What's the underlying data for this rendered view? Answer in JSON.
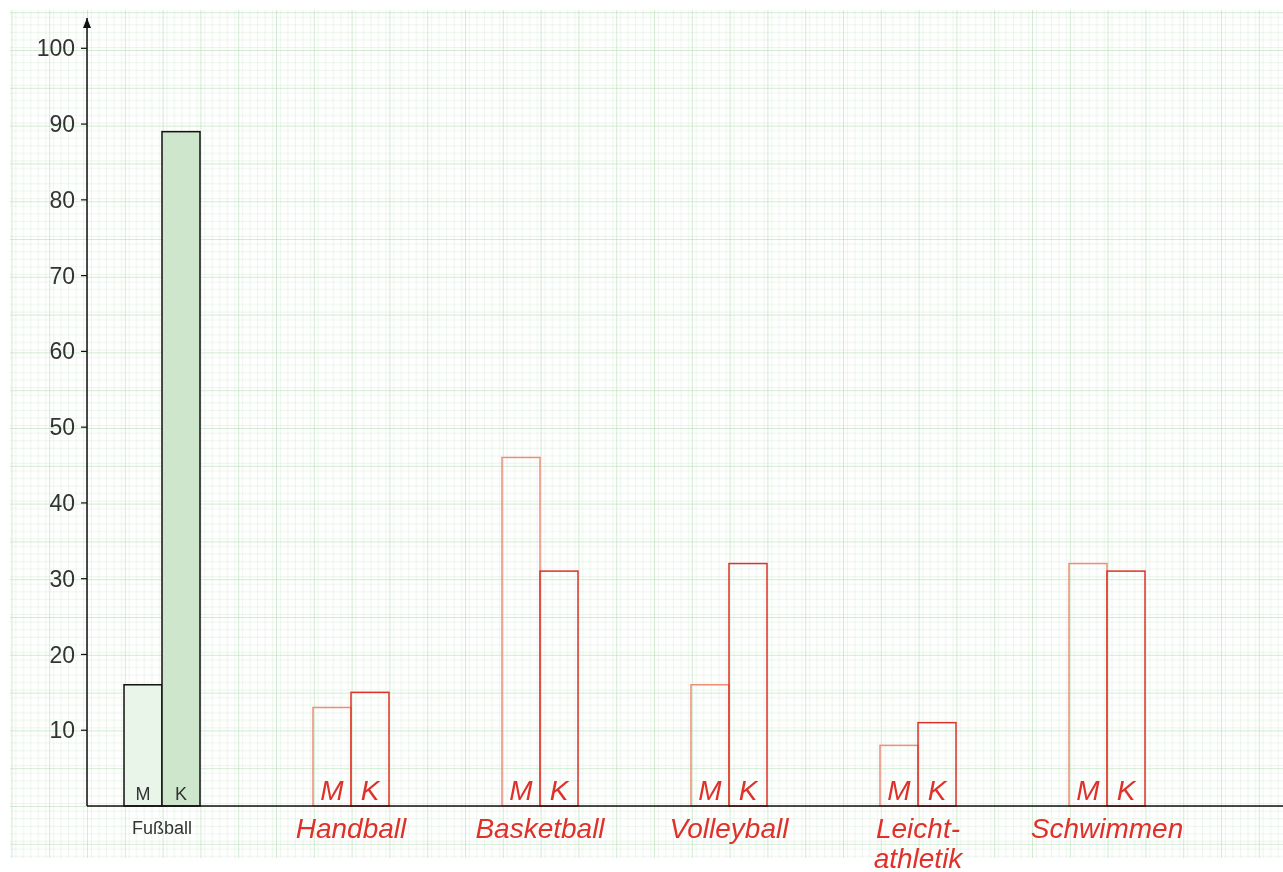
{
  "chart_data": {
    "type": "bar",
    "categories": [
      "Fußball",
      "Handball",
      "Basketball",
      "Volleyball",
      "Leicht-\nathletik",
      "Schwimmen"
    ],
    "series": [
      {
        "name": "M",
        "colors": [
          "#eaf5e9",
          "#f08c78",
          "#f08c78",
          "#f08c78",
          "#f08c78",
          "#f08c78"
        ],
        "values": [
          16,
          13,
          46,
          16,
          8,
          32
        ]
      },
      {
        "name": "K",
        "colors": [
          "#cde6cc",
          "#e0302a",
          "#e0302a",
          "#e0302a",
          "#e0302a",
          "#e0302a"
        ],
        "values": [
          89,
          15,
          31,
          32,
          11,
          31
        ]
      }
    ],
    "ylim": [
      0,
      104
    ],
    "yticks": [
      10,
      20,
      30,
      40,
      50,
      60,
      70,
      80,
      90,
      100
    ],
    "legend": false
  }
}
